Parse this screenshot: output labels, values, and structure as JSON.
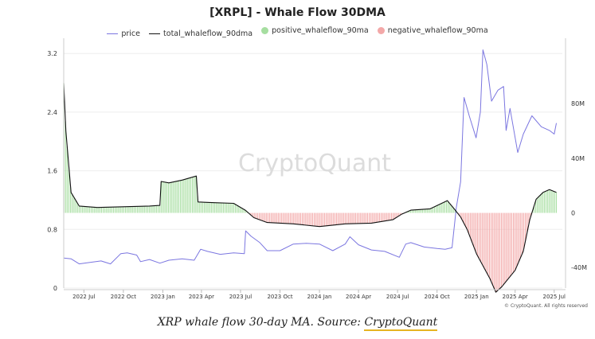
{
  "chart_data": {
    "type": "line",
    "title": "[XRPL] - Whale Flow 30DMA",
    "watermark": "CryptoQuant",
    "copyright": "© CryptoQuant. All rights reserved",
    "caption": {
      "text": "XRP whale flow 30-day MA. Source: ",
      "link": "CryptoQuant"
    },
    "legend": [
      {
        "name": "price",
        "color": "#7b76e0",
        "kind": "line"
      },
      {
        "name": "total_whaleflow_90dma",
        "color": "#111111",
        "kind": "line"
      },
      {
        "name": "positive_whaleflow_90ma",
        "color": "#a6dea0",
        "kind": "dot"
      },
      {
        "name": "negative_whaleflow_90ma",
        "color": "#f3a8a8",
        "kind": "dot"
      }
    ],
    "x_ticks": [
      "2022 Jul",
      "2022 Oct",
      "2023 Jan",
      "2023 Apr",
      "2023 Jul",
      "2023 Oct",
      "2024 Jan",
      "2024 Apr",
      "2024 Jul",
      "2024 Oct",
      "2025 Jan",
      "2025 Apr",
      "2025 Jul"
    ],
    "xlim": [
      "2022-05-15",
      "2025-07-20"
    ],
    "y_left": {
      "label": "",
      "ticks": [
        "0",
        "0.8",
        "1.6",
        "2.4",
        "3.2"
      ],
      "ylim": [
        0,
        3.3
      ]
    },
    "y_right": {
      "label": "",
      "ticks": [
        "-40M",
        "0",
        "40M",
        "80M"
      ],
      "ylim": [
        -55000000,
        122000000
      ]
    },
    "grid": true,
    "series": [
      {
        "name": "price",
        "axis": "left",
        "color": "#7b76e0",
        "points": [
          [
            "2022-05-15",
            0.41
          ],
          [
            "2022-06-01",
            0.4
          ],
          [
            "2022-06-20",
            0.33
          ],
          [
            "2022-07-15",
            0.35
          ],
          [
            "2022-08-10",
            0.37
          ],
          [
            "2022-09-01",
            0.33
          ],
          [
            "2022-09-25",
            0.47
          ],
          [
            "2022-10-10",
            0.48
          ],
          [
            "2022-11-01",
            0.45
          ],
          [
            "2022-11-10",
            0.36
          ],
          [
            "2022-12-01",
            0.39
          ],
          [
            "2022-12-25",
            0.34
          ],
          [
            "2023-01-15",
            0.38
          ],
          [
            "2023-02-15",
            0.4
          ],
          [
            "2023-03-15",
            0.38
          ],
          [
            "2023-03-30",
            0.53
          ],
          [
            "2023-04-15",
            0.5
          ],
          [
            "2023-05-15",
            0.46
          ],
          [
            "2023-06-15",
            0.48
          ],
          [
            "2023-07-10",
            0.47
          ],
          [
            "2023-07-13",
            0.78
          ],
          [
            "2023-07-25",
            0.71
          ],
          [
            "2023-08-15",
            0.62
          ],
          [
            "2023-09-01",
            0.51
          ],
          [
            "2023-10-01",
            0.51
          ],
          [
            "2023-11-01",
            0.6
          ],
          [
            "2023-12-01",
            0.61
          ],
          [
            "2024-01-01",
            0.6
          ],
          [
            "2024-02-01",
            0.51
          ],
          [
            "2024-03-01",
            0.6
          ],
          [
            "2024-03-12",
            0.7
          ],
          [
            "2024-04-01",
            0.59
          ],
          [
            "2024-05-01",
            0.52
          ],
          [
            "2024-06-01",
            0.5
          ],
          [
            "2024-07-05",
            0.42
          ],
          [
            "2024-07-20",
            0.6
          ],
          [
            "2024-08-01",
            0.62
          ],
          [
            "2024-09-01",
            0.56
          ],
          [
            "2024-10-01",
            0.54
          ],
          [
            "2024-10-20",
            0.53
          ],
          [
            "2024-11-05",
            0.55
          ],
          [
            "2024-11-15",
            1.1
          ],
          [
            "2024-11-25",
            1.45
          ],
          [
            "2024-12-03",
            2.6
          ],
          [
            "2024-12-15",
            2.35
          ],
          [
            "2024-12-31",
            2.05
          ],
          [
            "2025-01-10",
            2.4
          ],
          [
            "2025-01-16",
            3.25
          ],
          [
            "2025-01-25",
            3.05
          ],
          [
            "2025-02-05",
            2.55
          ],
          [
            "2025-02-20",
            2.7
          ],
          [
            "2025-03-05",
            2.75
          ],
          [
            "2025-03-11",
            2.15
          ],
          [
            "2025-03-20",
            2.45
          ],
          [
            "2025-04-07",
            1.85
          ],
          [
            "2025-04-20",
            2.1
          ],
          [
            "2025-05-10",
            2.35
          ],
          [
            "2025-06-01",
            2.2
          ],
          [
            "2025-06-20",
            2.15
          ],
          [
            "2025-07-01",
            2.1
          ],
          [
            "2025-07-06",
            2.25
          ]
        ]
      },
      {
        "name": "total_whaleflow_90dma",
        "axis": "right",
        "color": "#111111",
        "points": [
          [
            "2022-05-15",
            95000000
          ],
          [
            "2022-05-20",
            60000000
          ],
          [
            "2022-06-01",
            15000000
          ],
          [
            "2022-06-20",
            5000000
          ],
          [
            "2022-08-01",
            4000000
          ],
          [
            "2022-10-01",
            4500000
          ],
          [
            "2022-12-01",
            5000000
          ],
          [
            "2022-12-25",
            5500000
          ],
          [
            "2022-12-28",
            23000000
          ],
          [
            "2023-01-15",
            22000000
          ],
          [
            "2023-02-15",
            24000000
          ],
          [
            "2023-03-20",
            27000000
          ],
          [
            "2023-03-24",
            8000000
          ],
          [
            "2023-05-01",
            7500000
          ],
          [
            "2023-06-15",
            7000000
          ],
          [
            "2023-07-12",
            2000000
          ],
          [
            "2023-08-01",
            -3500000
          ],
          [
            "2023-09-01",
            -7000000
          ],
          [
            "2023-11-01",
            -8000000
          ],
          [
            "2024-01-01",
            -10000000
          ],
          [
            "2024-03-01",
            -8000000
          ],
          [
            "2024-05-01",
            -7500000
          ],
          [
            "2024-06-20",
            -5000000
          ],
          [
            "2024-07-10",
            -1000000
          ],
          [
            "2024-08-01",
            2000000
          ],
          [
            "2024-09-15",
            3000000
          ],
          [
            "2024-10-25",
            9000000
          ],
          [
            "2024-11-10",
            3000000
          ],
          [
            "2024-11-25",
            -3000000
          ],
          [
            "2024-12-10",
            -12000000
          ],
          [
            "2025-01-01",
            -30000000
          ],
          [
            "2025-02-01",
            -48000000
          ],
          [
            "2025-02-15",
            -58000000
          ],
          [
            "2025-03-01",
            -54000000
          ],
          [
            "2025-04-01",
            -42000000
          ],
          [
            "2025-04-20",
            -28000000
          ],
          [
            "2025-05-05",
            -5000000
          ],
          [
            "2025-05-20",
            10000000
          ],
          [
            "2025-06-05",
            15000000
          ],
          [
            "2025-06-20",
            17000000
          ],
          [
            "2025-07-06",
            15000000
          ]
        ]
      }
    ]
  }
}
